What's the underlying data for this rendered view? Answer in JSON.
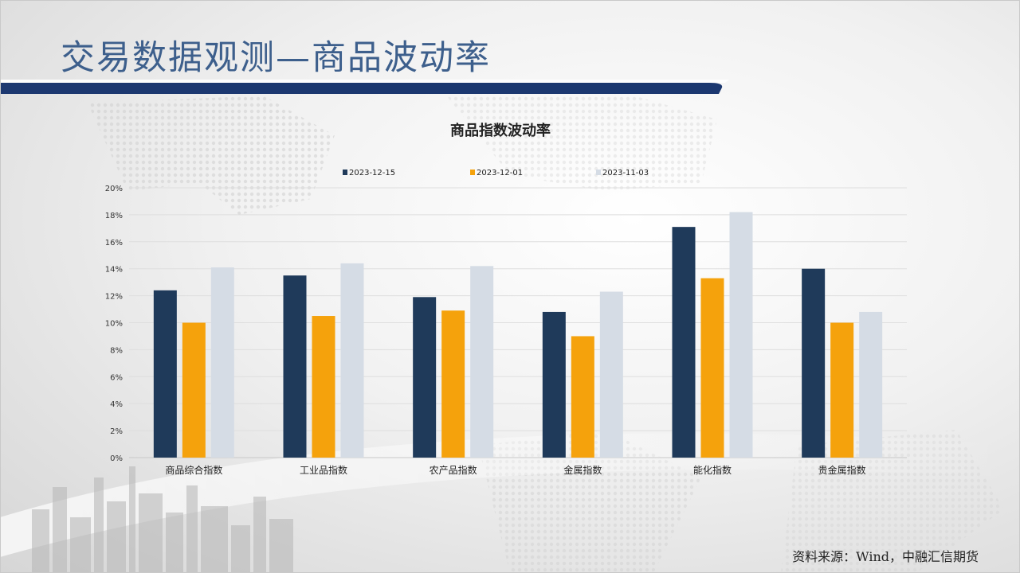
{
  "slide": {
    "title": "交易数据观测—商品波动率",
    "source": "资料来源：Wind，中融汇信期货"
  },
  "colors": {
    "title": "#3d5f8c",
    "band": "#1c3870",
    "series": [
      "#1f3a5a",
      "#f5a20c",
      "#d5dce5"
    ]
  },
  "chart_data": {
    "type": "bar",
    "title": "商品指数波动率",
    "categories": [
      "商品综合指数",
      "工业品指数",
      "农产品指数",
      "金属指数",
      "能化指数",
      "贵金属指数"
    ],
    "series": [
      {
        "name": "2023-12-15",
        "values": [
          12.4,
          13.5,
          11.9,
          10.8,
          17.1,
          14.0
        ]
      },
      {
        "name": "2023-12-01",
        "values": [
          10.0,
          10.5,
          10.9,
          9.0,
          13.3,
          10.0
        ]
      },
      {
        "name": "2023-11-03",
        "values": [
          14.1,
          14.4,
          14.2,
          12.3,
          18.2,
          10.8
        ]
      }
    ],
    "ylim": [
      0,
      20
    ],
    "yticks": [
      "0%",
      "2%",
      "4%",
      "6%",
      "8%",
      "10%",
      "12%",
      "14%",
      "16%",
      "18%",
      "20%"
    ],
    "grid": true,
    "legend_position": "top"
  }
}
